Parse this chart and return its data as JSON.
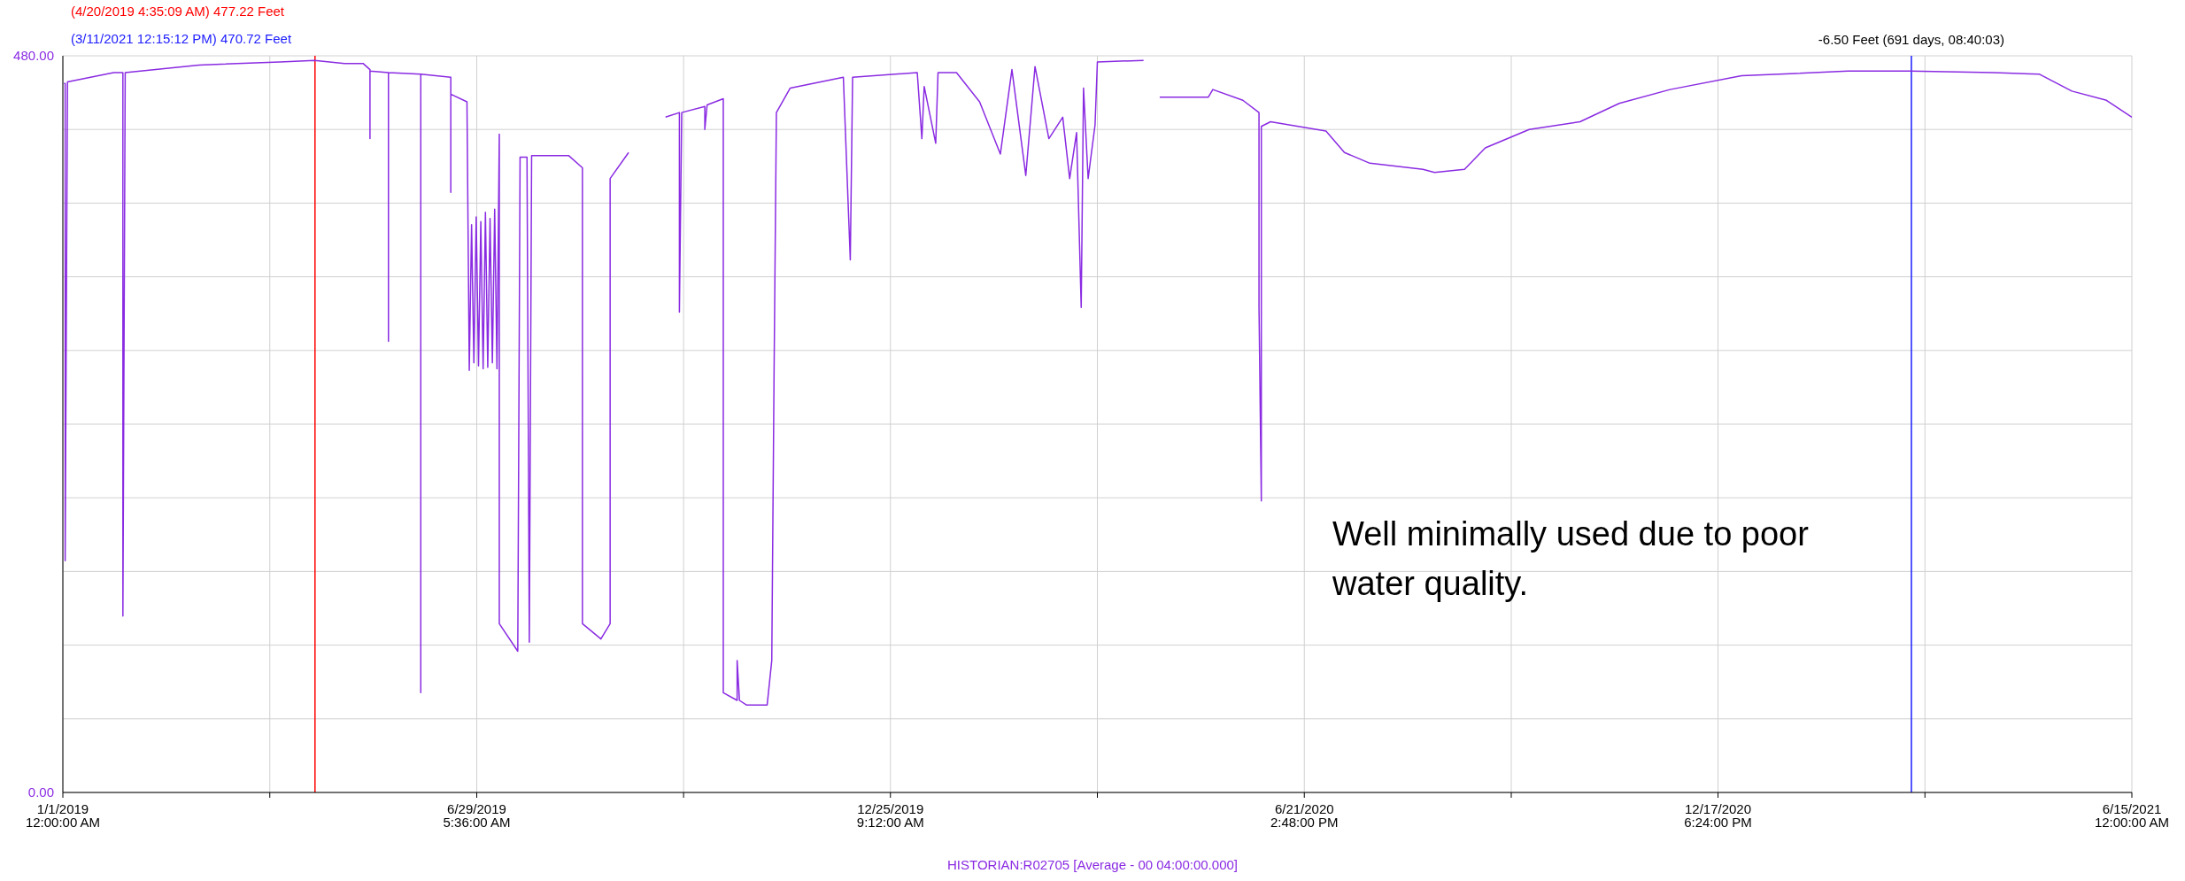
{
  "chart_data": {
    "type": "line",
    "xlim": [
      "2019-01-01T00:00",
      "2021-06-15T00:00"
    ],
    "xticks": [
      {
        "value": "2019-01-01T00:00",
        "label": "1/1/2019 12:00:00 AM"
      },
      {
        "value": "2019-03-31T14:48",
        "label": null
      },
      {
        "value": "2019-06-29T05:36",
        "label": "6/29/2019 5:36:00 AM"
      },
      {
        "value": "2019-09-26T19:24",
        "label": null
      },
      {
        "value": "2019-12-25T09:12",
        "label": "12/25/2019 9:12:00 AM"
      },
      {
        "value": "2020-03-24T00:00",
        "label": null
      },
      {
        "value": "2020-06-21T14:48",
        "label": "6/21/2020 2:48:00 PM"
      },
      {
        "value": "2020-09-19T05:36",
        "label": null
      },
      {
        "value": "2020-12-17T18:24",
        "label": "12/17/2020 6:24:00 PM"
      },
      {
        "value": "2021-03-17T09:12",
        "label": null
      },
      {
        "value": "2021-06-15T00:00",
        "label": "6/15/2021 12:00:00 AM"
      }
    ],
    "ylim": [
      0,
      480
    ],
    "yticks": [
      {
        "value": 0,
        "label": "0.00"
      },
      {
        "value": 48,
        "label": null
      },
      {
        "value": 96,
        "label": null
      },
      {
        "value": 144,
        "label": null
      },
      {
        "value": 192,
        "label": null
      },
      {
        "value": 240,
        "label": null
      },
      {
        "value": 288,
        "label": null
      },
      {
        "value": 336,
        "label": null
      },
      {
        "value": 384,
        "label": null
      },
      {
        "value": 432,
        "label": null
      },
      {
        "value": 480,
        "label": "480.00"
      }
    ],
    "grid": true,
    "marker": "none",
    "line_style": "solid",
    "ref_lines": [
      {
        "axis": "x",
        "value": "2019-04-20T04:35",
        "label": "(4/20/2019 4:35:09 AM) 477.22 Feet",
        "color": "#ff0000"
      },
      {
        "axis": "x",
        "value": "2021-03-11T12:15",
        "label": "(3/11/2021 12:15:12 PM) 470.72 Feet",
        "color": "#1a1aff"
      }
    ],
    "annotations": [
      "-6.50 Feet (691 days, 08:40:03)",
      "Well minimally used due to poor water quality.",
      "HISTORIAN:R02705 [Average - 00 04:00:00.000]"
    ],
    "series": [
      {
        "color": "#8a2be2",
        "x": [
          "2019-01-01T12:00",
          "2019-01-02",
          "2019-01-02",
          "2019-01-03",
          "2019-01-23",
          "2019-01-27",
          "2019-01-27",
          "2019-01-28",
          "2019-03-01",
          "2019-04-05",
          "2019-04-20",
          "2019-05-03",
          "2019-05-11",
          "2019-05-14",
          "2019-05-14",
          "2019-05-14",
          "2019-05-22",
          "2019-05-22",
          "2019-05-22",
          "2019-06-05",
          "2019-06-05",
          "2019-06-05",
          "2019-06-18",
          "2019-06-18",
          "2019-06-18",
          "2019-06-25",
          "2019-06-26",
          "2019-06-27",
          "2019-06-28",
          "2019-06-29",
          "2019-06-30",
          "2019-07-01",
          "2019-07-02",
          "2019-07-03",
          "2019-07-04",
          "2019-07-05",
          "2019-07-06",
          "2019-07-07",
          "2019-07-08",
          "2019-07-09",
          "2019-07-09",
          "2019-07-17",
          "2019-07-18",
          "2019-07-21",
          "2019-07-22",
          "2019-07-23",
          "2019-08-08",
          "2019-08-14",
          "2019-08-14",
          "2019-08-22",
          "2019-08-26",
          "2019-08-26",
          "2019-09-03",
          "2019-09-10",
          "2019-09-19",
          "2019-09-25",
          "2019-09-25",
          "2019-09-26",
          "2019-10-06",
          "2019-10-06",
          "2019-10-07",
          "2019-10-14",
          "2019-10-14",
          "2019-10-20",
          "2019-10-20",
          "2019-10-21",
          "2019-10-24",
          "2019-11-02",
          "2019-11-04",
          "2019-11-05",
          "2019-11-06",
          "2019-11-12",
          "2019-12-05",
          "2019-12-08",
          "2019-12-09",
          "2020-01-06",
          "2020-01-08",
          "2020-01-09",
          "2020-01-14",
          "2020-01-15",
          "2020-01-23",
          "2020-02-02",
          "2020-02-11",
          "2020-02-16",
          "2020-02-22",
          "2020-02-26",
          "2020-03-03",
          "2020-03-09",
          "2020-03-12",
          "2020-03-15",
          "2020-03-17",
          "2020-03-18",
          "2020-03-20",
          "2020-03-23",
          "2020-03-24",
          "2020-04-13",
          "2020-04-16",
          "2020-04-20",
          "2020-05-11",
          "2020-05-13",
          "2020-05-26",
          "2020-06-02",
          "2020-06-02",
          "2020-06-03",
          "2020-06-03",
          "2020-06-07",
          "2020-07-01",
          "2020-07-09",
          "2020-07-20",
          "2020-08-12",
          "2020-08-17",
          "2020-08-30",
          "2020-09-08",
          "2020-09-27",
          "2020-10-19",
          "2020-11-05",
          "2020-11-27",
          "2020-12-28",
          "2021-02-12",
          "2021-03-11",
          "2021-04-16",
          "2021-05-06",
          "2021-05-20",
          "2021-06-04",
          "2021-06-15"
        ],
        "values": [
          462,
          462,
          151,
          463,
          469,
          469,
          115,
          469,
          474,
          476,
          477,
          475,
          475,
          471,
          426,
          470,
          469,
          294,
          469,
          468,
          65,
          468,
          466,
          391,
          455,
          450,
          275,
          370,
          280,
          375,
          278,
          372,
          276,
          378,
          277,
          374,
          280,
          380,
          276,
          429,
          110,
          92,
          414,
          414,
          98,
          415,
          415,
          407,
          110,
          100,
          110,
          400,
          417,
          null,
          440,
          443,
          313,
          443,
          447,
          432,
          448,
          452,
          65,
          60,
          86,
          60,
          57,
          57,
          86,
          275,
          443,
          459,
          466,
          347,
          466,
          469,
          426,
          460,
          423,
          469,
          469,
          450,
          416,
          471,
          402,
          473,
          426,
          440,
          400,
          430,
          316,
          459,
          400,
          435,
          476,
          477,
          null,
          453,
          453,
          458,
          451,
          443,
          316,
          190,
          434,
          437,
          431,
          417,
          410,
          406,
          404,
          406,
          420,
          432,
          437,
          449,
          458,
          467,
          470,
          470,
          469,
          468,
          457,
          451,
          440
        ]
      }
    ]
  }
}
